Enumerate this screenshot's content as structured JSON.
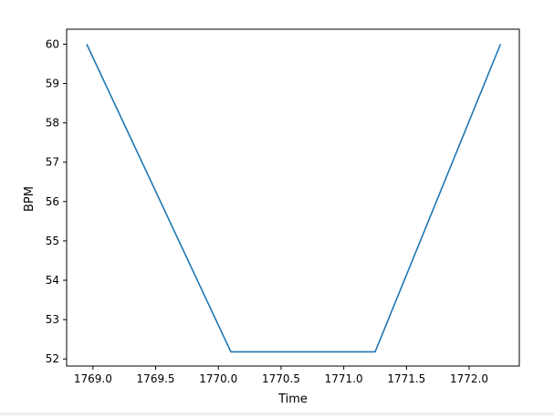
{
  "chart_data": {
    "type": "line",
    "title": "",
    "xlabel": "Time",
    "ylabel": "BPM",
    "xlim": [
      1768.79,
      1772.4
    ],
    "ylim": [
      51.82,
      60.38
    ],
    "xticks": [
      1769.0,
      1769.5,
      1770.0,
      1770.5,
      1771.0,
      1771.5,
      1772.0
    ],
    "xtick_labels": [
      "1769.0",
      "1769.5",
      "1770.0",
      "1770.5",
      "1771.0",
      "1771.5",
      "1772.0"
    ],
    "yticks": [
      52,
      53,
      54,
      55,
      56,
      57,
      58,
      59,
      60
    ],
    "ytick_labels": [
      "52",
      "53",
      "54",
      "55",
      "56",
      "57",
      "58",
      "59",
      "60"
    ],
    "grid": false,
    "legend": false,
    "series": [
      {
        "color": "#1f77b4",
        "x": [
          1768.95,
          1770.1,
          1771.25,
          1772.25
        ],
        "y": [
          60.0,
          52.18,
          52.18,
          60.0
        ]
      }
    ]
  }
}
